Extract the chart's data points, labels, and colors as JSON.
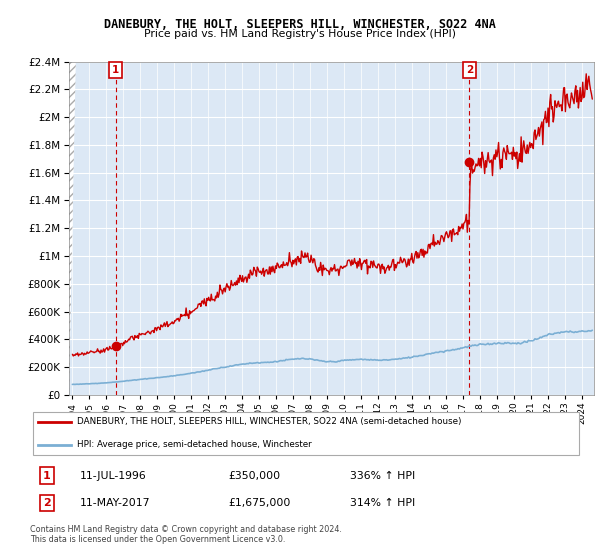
{
  "title": "DANEBURY, THE HOLT, SLEEPERS HILL, WINCHESTER, SO22 4NA",
  "subtitle": "Price paid vs. HM Land Registry's House Price Index (HPI)",
  "legend_line1": "DANEBURY, THE HOLT, SLEEPERS HILL, WINCHESTER, SO22 4NA (semi-detached house)",
  "legend_line2": "HPI: Average price, semi-detached house, Winchester",
  "annotation1_date": "11-JUL-1996",
  "annotation1_price": "£350,000",
  "annotation1_hpi": "336% ↑ HPI",
  "annotation2_date": "11-MAY-2017",
  "annotation2_price": "£1,675,000",
  "annotation2_hpi": "314% ↑ HPI",
  "footer": "Contains HM Land Registry data © Crown copyright and database right 2024.\nThis data is licensed under the Open Government Licence v3.0.",
  "red_line_color": "#cc0000",
  "blue_line_color": "#7bafd4",
  "annotation_box_color": "#cc0000",
  "plot_bg_color": "#dce8f5",
  "ylim_min": 0,
  "ylim_max": 2400000,
  "yticks": [
    0,
    200000,
    400000,
    600000,
    800000,
    1000000,
    1200000,
    1400000,
    1600000,
    1800000,
    2000000,
    2200000,
    2400000
  ],
  "sale1_x": 1996.54,
  "sale1_y": 350000,
  "sale2_x": 2017.36,
  "sale2_y": 1675000,
  "xmin": 1993.8,
  "xmax": 2024.7
}
